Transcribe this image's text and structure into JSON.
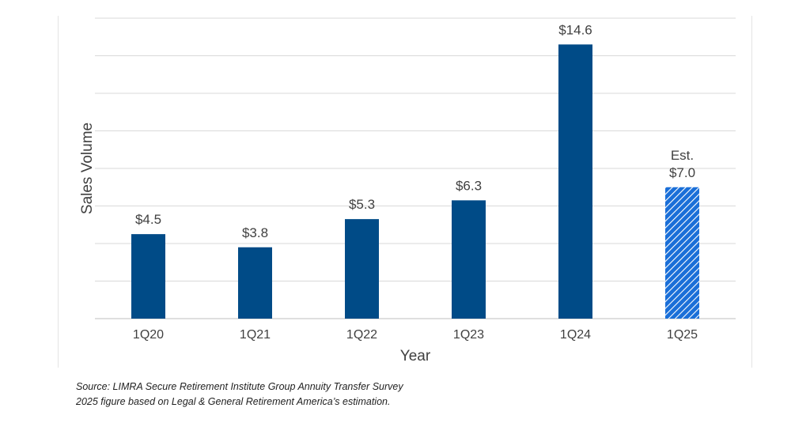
{
  "chart_data": {
    "type": "bar",
    "title": "",
    "xlabel": "Year",
    "ylabel": "Sales Volume",
    "categories": [
      "1Q20",
      "1Q21",
      "1Q22",
      "1Q23",
      "1Q24",
      "1Q25"
    ],
    "values": [
      4.5,
      3.8,
      5.3,
      6.3,
      14.6,
      7.0
    ],
    "data_labels": [
      "$4.5",
      "$3.8",
      "$5.3",
      "$6.3",
      "$14.6",
      "$7.0"
    ],
    "estimated": [
      false,
      false,
      false,
      false,
      false,
      true
    ],
    "estimate_prefix": "Est.",
    "ylim": [
      0,
      16
    ],
    "y_gridlines": [
      0,
      2,
      4,
      6,
      8,
      10,
      12,
      14,
      16
    ],
    "grid": true,
    "y_tick_labels_visible": false,
    "colors": {
      "bar": "#004b87",
      "estimate_bar": "#1a6fd8",
      "estimate_hatch": "#ffffff",
      "grid": "#d9d9d9",
      "text": "#404040"
    }
  },
  "source_note": {
    "line1": "Source: LIMRA Secure Retirement Institute Group Annuity Transfer Survey",
    "line2": "2025 figure based on Legal & General Retirement America’s estimation."
  }
}
